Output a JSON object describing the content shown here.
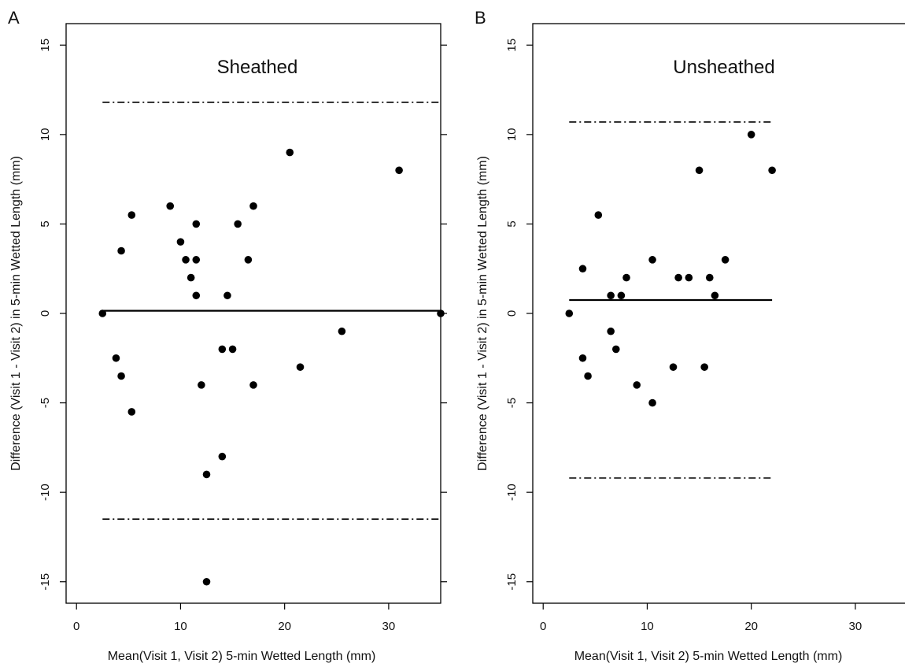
{
  "chart_data": [
    {
      "type": "scatter",
      "panel_letter": "A",
      "title": "Sheathed",
      "xlabel": "Mean(Visit 1, Visit 2) 5-min Wetted Length (mm)",
      "ylabel": "Difference (Visit 1 - Visit 2) in 5-min Wetted Length (mm)",
      "xlim": [
        -1,
        35
      ],
      "ylim": [
        -16.2,
        16.2
      ],
      "xticks": [
        0,
        10,
        20,
        30
      ],
      "xtick_labels": [
        "0",
        "10",
        "20",
        "30"
      ],
      "yticks": [
        -15,
        -10,
        -5,
        0,
        5,
        10,
        15
      ],
      "ytick_labels": [
        "-15",
        "-10",
        "-5",
        "0",
        "5",
        "10",
        "15"
      ],
      "grid": false,
      "reference_lines": [
        {
          "kind": "mean",
          "style": "solid",
          "y": 0.15,
          "x_range": [
            2.5,
            35
          ]
        },
        {
          "kind": "upper-limit",
          "style": "dash-dot",
          "y": 11.8,
          "x_range": [
            2.5,
            35
          ]
        },
        {
          "kind": "lower-limit",
          "style": "dash-dot",
          "y": -11.5,
          "x_range": [
            2.5,
            35
          ]
        }
      ],
      "points": [
        {
          "x": 2.5,
          "y": 0
        },
        {
          "x": 3.8,
          "y": -2.5
        },
        {
          "x": 4.3,
          "y": -3.5
        },
        {
          "x": 4.3,
          "y": 3.5
        },
        {
          "x": 5.3,
          "y": 5.5
        },
        {
          "x": 5.3,
          "y": -5.5
        },
        {
          "x": 9,
          "y": 6
        },
        {
          "x": 10,
          "y": 4
        },
        {
          "x": 10.5,
          "y": 3
        },
        {
          "x": 11,
          "y": 2
        },
        {
          "x": 11.5,
          "y": 5
        },
        {
          "x": 11.5,
          "y": 3
        },
        {
          "x": 11.5,
          "y": 1
        },
        {
          "x": 12,
          "y": -4
        },
        {
          "x": 12.5,
          "y": -9
        },
        {
          "x": 12.5,
          "y": -15
        },
        {
          "x": 14,
          "y": -2
        },
        {
          "x": 14,
          "y": -8
        },
        {
          "x": 14.5,
          "y": 1
        },
        {
          "x": 15,
          "y": -2
        },
        {
          "x": 15.5,
          "y": 5
        },
        {
          "x": 16.5,
          "y": 3
        },
        {
          "x": 17,
          "y": 6
        },
        {
          "x": 17,
          "y": -4
        },
        {
          "x": 20.5,
          "y": 9
        },
        {
          "x": 21.5,
          "y": -3
        },
        {
          "x": 25.5,
          "y": -1
        },
        {
          "x": 31,
          "y": 8
        },
        {
          "x": 35,
          "y": 0
        }
      ]
    },
    {
      "type": "scatter",
      "panel_letter": "B",
      "title": "Unsheathed",
      "xlabel": "Mean(Visit 1, Visit 2) 5-min Wetted Length (mm)",
      "ylabel": "Difference (Visit 1 - Visit 2) in 5-min Wetted Length (mm)",
      "xlim": [
        -1,
        35
      ],
      "ylim": [
        -16.2,
        16.2
      ],
      "xticks": [
        0,
        10,
        20,
        30
      ],
      "xtick_labels": [
        "0",
        "10",
        "20",
        "30"
      ],
      "yticks": [
        -15,
        -10,
        -5,
        0,
        5,
        10,
        15
      ],
      "ytick_labels": [
        "-15",
        "-10",
        "-5",
        "0",
        "5",
        "10",
        "15"
      ],
      "grid": false,
      "reference_lines": [
        {
          "kind": "mean",
          "style": "solid",
          "y": 0.75,
          "x_range": [
            2.5,
            22
          ]
        },
        {
          "kind": "upper-limit",
          "style": "dash-dot",
          "y": 10.7,
          "x_range": [
            2.5,
            22
          ]
        },
        {
          "kind": "lower-limit",
          "style": "dash-dot",
          "y": -9.2,
          "x_range": [
            2.5,
            22
          ]
        }
      ],
      "points": [
        {
          "x": 2.5,
          "y": 0
        },
        {
          "x": 3.8,
          "y": 2.5
        },
        {
          "x": 3.8,
          "y": -2.5
        },
        {
          "x": 4.3,
          "y": -3.5
        },
        {
          "x": 5.3,
          "y": 5.5
        },
        {
          "x": 6.5,
          "y": 1
        },
        {
          "x": 6.5,
          "y": -1
        },
        {
          "x": 7,
          "y": -2
        },
        {
          "x": 7.5,
          "y": 1
        },
        {
          "x": 8,
          "y": 2
        },
        {
          "x": 9,
          "y": -4
        },
        {
          "x": 10.5,
          "y": 3
        },
        {
          "x": 10.5,
          "y": -5
        },
        {
          "x": 12.5,
          "y": -3
        },
        {
          "x": 13,
          "y": 2
        },
        {
          "x": 14,
          "y": 2
        },
        {
          "x": 15,
          "y": 8
        },
        {
          "x": 15.5,
          "y": -3
        },
        {
          "x": 16,
          "y": 2
        },
        {
          "x": 16.5,
          "y": 1
        },
        {
          "x": 17.5,
          "y": 3
        },
        {
          "x": 20,
          "y": 10
        },
        {
          "x": 22,
          "y": 8
        }
      ]
    }
  ]
}
